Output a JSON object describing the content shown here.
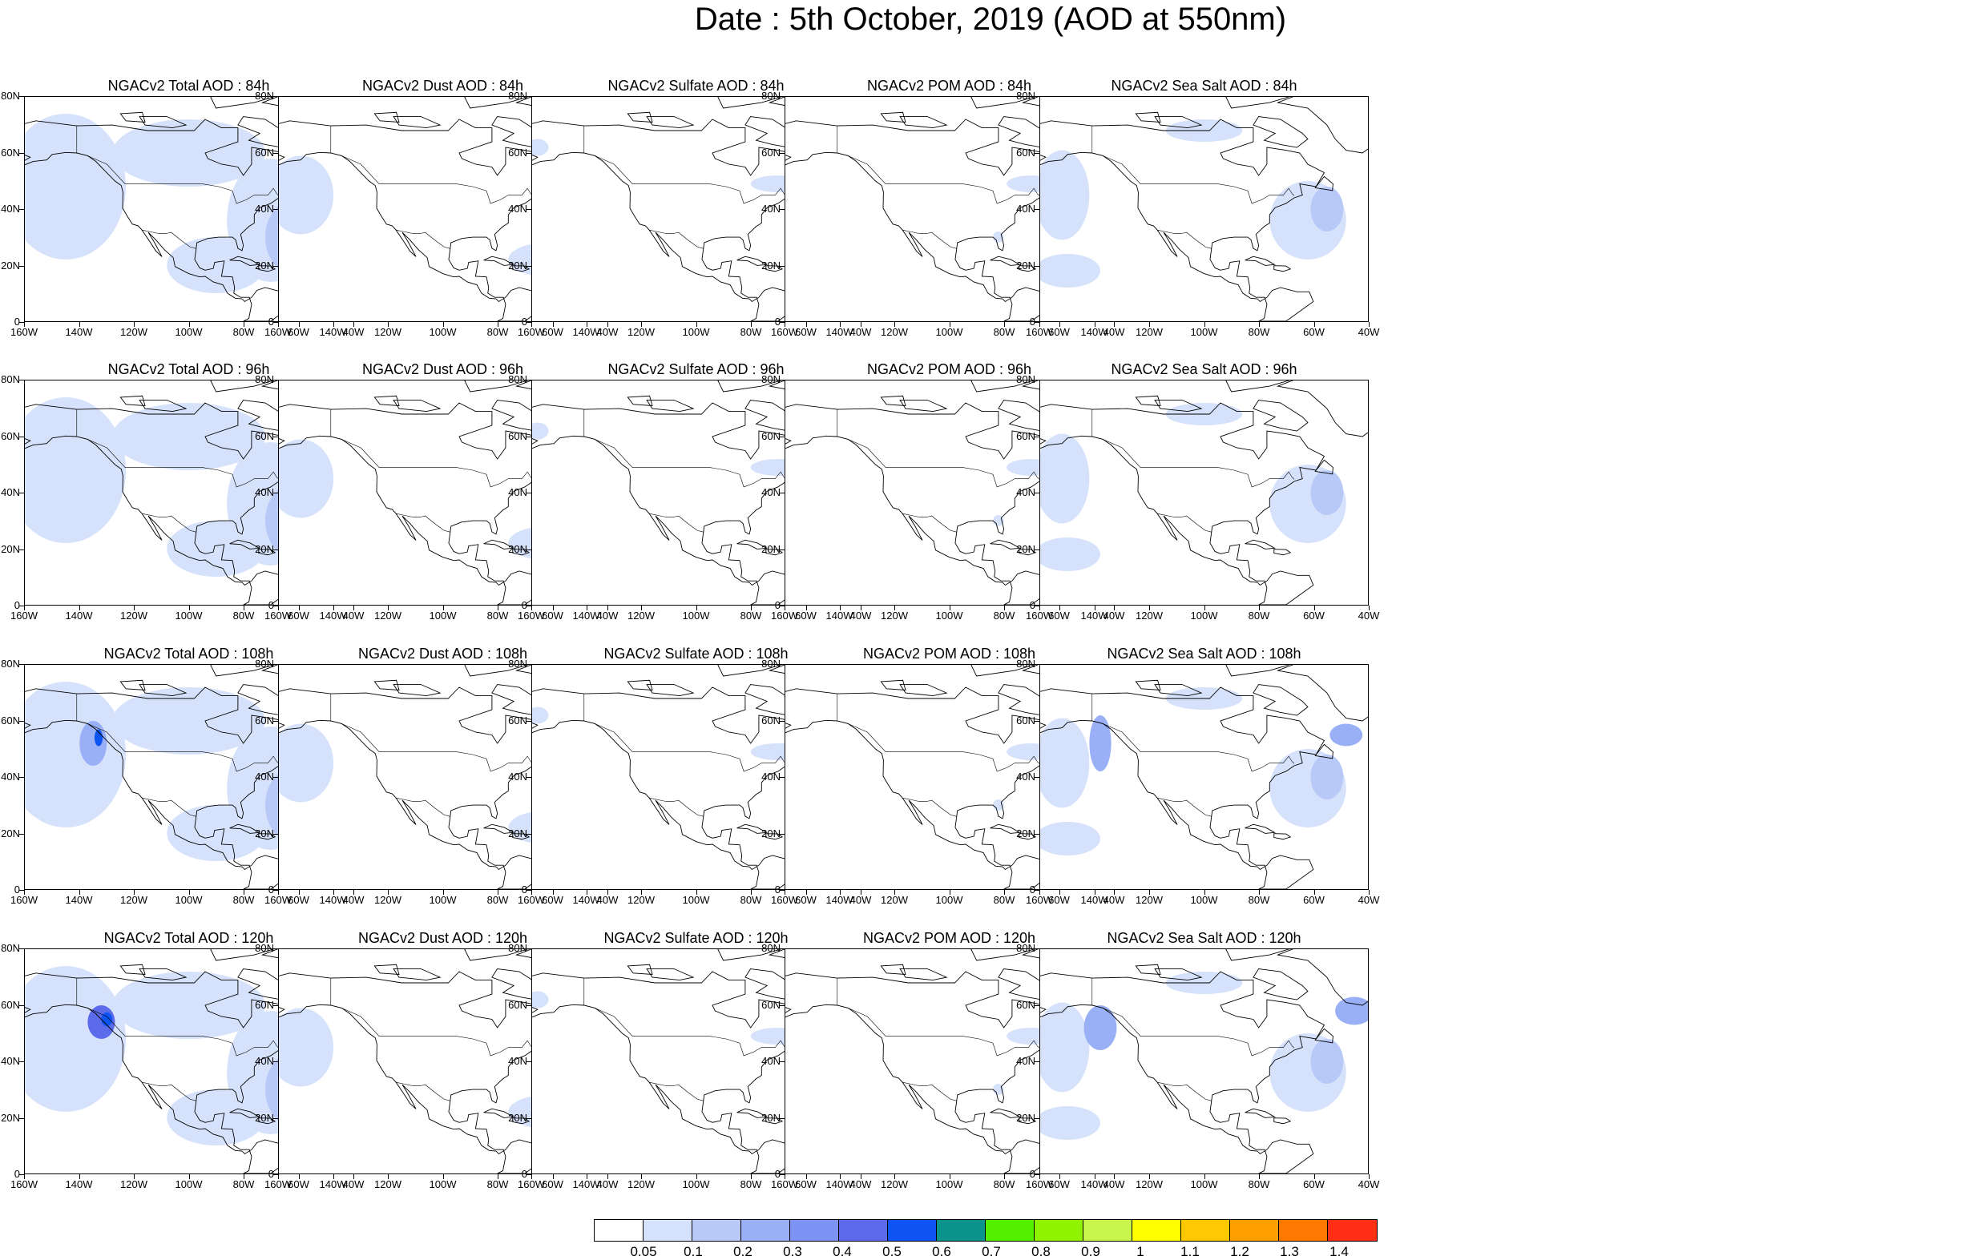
{
  "title": "Date : 5th October, 2019 (AOD at 550nm)",
  "panel_titles": [
    [
      "NGACv2 Total AOD : 84h",
      "NGACv2 Dust AOD : 84h",
      "NGACv2 Sulfate AOD : 84h",
      "NGACv2 POM AOD : 84h",
      "NGACv2 Sea Salt AOD : 84h"
    ],
    [
      "NGACv2 Total AOD : 96h",
      "NGACv2 Dust AOD : 96h",
      "NGACv2 Sulfate AOD : 96h",
      "NGACv2 POM AOD : 96h",
      "NGACv2 Sea Salt AOD : 96h"
    ],
    [
      "NGACv2 Total AOD : 108h",
      "NGACv2 Dust AOD : 108h",
      "NGACv2 Sulfate AOD : 108h",
      "NGACv2 POM AOD : 108h",
      "NGACv2 Sea Salt AOD : 108h"
    ],
    [
      "NGACv2 Total AOD : 120h",
      "NGACv2 Dust AOD : 120h",
      "NGACv2 Sulfate AOD : 120h",
      "NGACv2 POM AOD : 120h",
      "NGACv2 Sea Salt  AOD : 120h"
    ]
  ],
  "y_ticks": [
    "80N",
    "60N",
    "40N",
    "20N",
    "0"
  ],
  "x_ticks": [
    "160W",
    "140W",
    "120W",
    "100W",
    "80W",
    "60W",
    "40W"
  ],
  "colorbar": {
    "colors": [
      "#ffffff",
      "#d6e2fb",
      "#b8c9f8",
      "#9ab0f6",
      "#7c93f3",
      "#5b6be9",
      "#0d54f3",
      "#0a948c",
      "#55f000",
      "#8ef200",
      "#c8f44c",
      "#ffff00",
      "#ffc800",
      "#ffa000",
      "#ff7800",
      "#fe2f14"
    ],
    "labels": [
      "0.05",
      "0.1",
      "0.2",
      "0.3",
      "0.4",
      "0.5",
      "0.6",
      "0.7",
      "0.8",
      "0.9",
      "1",
      "1.1",
      "1.2",
      "1.3",
      "1.4"
    ]
  },
  "map": {
    "lon_range": [
      -160,
      -40
    ],
    "lat_range": [
      0,
      80
    ],
    "outline_color": "#000000",
    "fill_colors": {
      "light": "#d6e2fb",
      "mid": "#b8c9f8",
      "strong": "#9ab0f6",
      "dark": "#5b6be9",
      "peak": "#0d54f3"
    }
  }
}
